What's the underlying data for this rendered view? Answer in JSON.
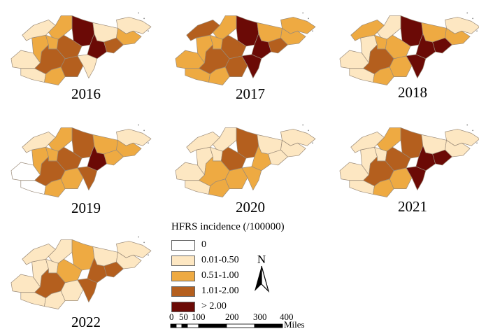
{
  "colors": {
    "zero": "#ffffff",
    "c1": "#fde7c2",
    "c2": "#eeaa42",
    "c3": "#b45f1e",
    "c4": "#6b0a06",
    "border": "#9a8a78"
  },
  "maps": [
    {
      "year": "2016",
      "levels": [
        1,
        1,
        2,
        1,
        2,
        4,
        1,
        1,
        2,
        2,
        3,
        3,
        2,
        3,
        4,
        1,
        3
      ]
    },
    {
      "year": "2017",
      "levels": [
        2,
        2,
        2,
        3,
        2,
        4,
        2,
        2,
        2,
        2,
        3,
        3,
        2,
        3,
        4,
        4,
        3
      ]
    },
    {
      "year": "2018",
      "levels": [
        1,
        1,
        1,
        2,
        1,
        4,
        2,
        1,
        2,
        2,
        2,
        3,
        2,
        2,
        4,
        4,
        4
      ]
    },
    {
      "year": "2019",
      "levels": [
        0,
        0,
        2,
        1,
        2,
        3,
        2,
        1,
        2,
        2,
        3,
        3,
        2,
        2,
        4,
        3,
        2
      ]
    },
    {
      "year": "2020",
      "levels": [
        1,
        1,
        1,
        1,
        1,
        3,
        1,
        1,
        1,
        1,
        3,
        2,
        2,
        2,
        2,
        2,
        1
      ]
    },
    {
      "year": "2021",
      "levels": [
        1,
        1,
        1,
        1,
        2,
        3,
        1,
        1,
        1,
        1,
        3,
        3,
        2,
        2,
        4,
        4,
        4
      ]
    },
    {
      "year": "2022",
      "levels": [
        1,
        1,
        1,
        1,
        1,
        2,
        1,
        1,
        1,
        1,
        2,
        3,
        1,
        1,
        3,
        3,
        3
      ]
    }
  ],
  "legend": {
    "title": "HFRS incidence (/100000)",
    "items": [
      {
        "label": "0",
        "level": 0
      },
      {
        "label": "0.01-0.50",
        "level": 1
      },
      {
        "label": "0.51-1.00",
        "level": 2
      },
      {
        "label": "1.01-2.00",
        "level": 3
      },
      {
        "label": "> 2.00",
        "level": 4
      }
    ]
  },
  "north_arrow": {
    "label": "N"
  },
  "scale_bar": {
    "ticks": [
      "0",
      "50",
      "100",
      "200",
      "300",
      "400"
    ],
    "unit": "Miles"
  }
}
